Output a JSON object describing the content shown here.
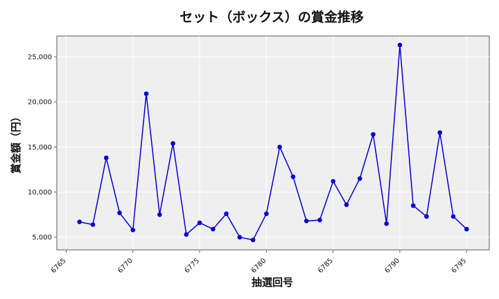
{
  "chart_data": {
    "type": "line",
    "title": "セット（ボックス）の賞金推移",
    "xlabel": "抽選回号",
    "ylabel": "賞金額（円）",
    "xlim": [
      6764.3,
      6796.7
    ],
    "ylim": [
      3600,
      27300
    ],
    "x_ticks": [
      6765,
      6770,
      6775,
      6780,
      6785,
      6790,
      6795
    ],
    "y_ticks": [
      5000,
      10000,
      15000,
      20000,
      25000
    ],
    "x_tick_labels": [
      "6765",
      "6770",
      "6775",
      "6780",
      "6785",
      "6790",
      "6795"
    ],
    "y_tick_labels": [
      "5,000",
      "10,000",
      "15,000",
      "20,000",
      "25,000"
    ],
    "grid": true,
    "series": [
      {
        "color": "#0000cc",
        "x": [
          6766,
          6767,
          6768,
          6769,
          6770,
          6771,
          6772,
          6773,
          6774,
          6775,
          6776,
          6777,
          6778,
          6779,
          6780,
          6781,
          6782,
          6783,
          6784,
          6785,
          6786,
          6787,
          6788,
          6789,
          6790,
          6791,
          6792,
          6793,
          6794,
          6795
        ],
        "y": [
          6700,
          6400,
          13800,
          7700,
          5800,
          20900,
          7500,
          15400,
          5300,
          6600,
          5900,
          7600,
          5000,
          4700,
          7600,
          15000,
          11700,
          6800,
          6900,
          11200,
          8600,
          11500,
          16400,
          6500,
          26300,
          8500,
          7300,
          16600,
          7300,
          5900
        ]
      }
    ]
  }
}
